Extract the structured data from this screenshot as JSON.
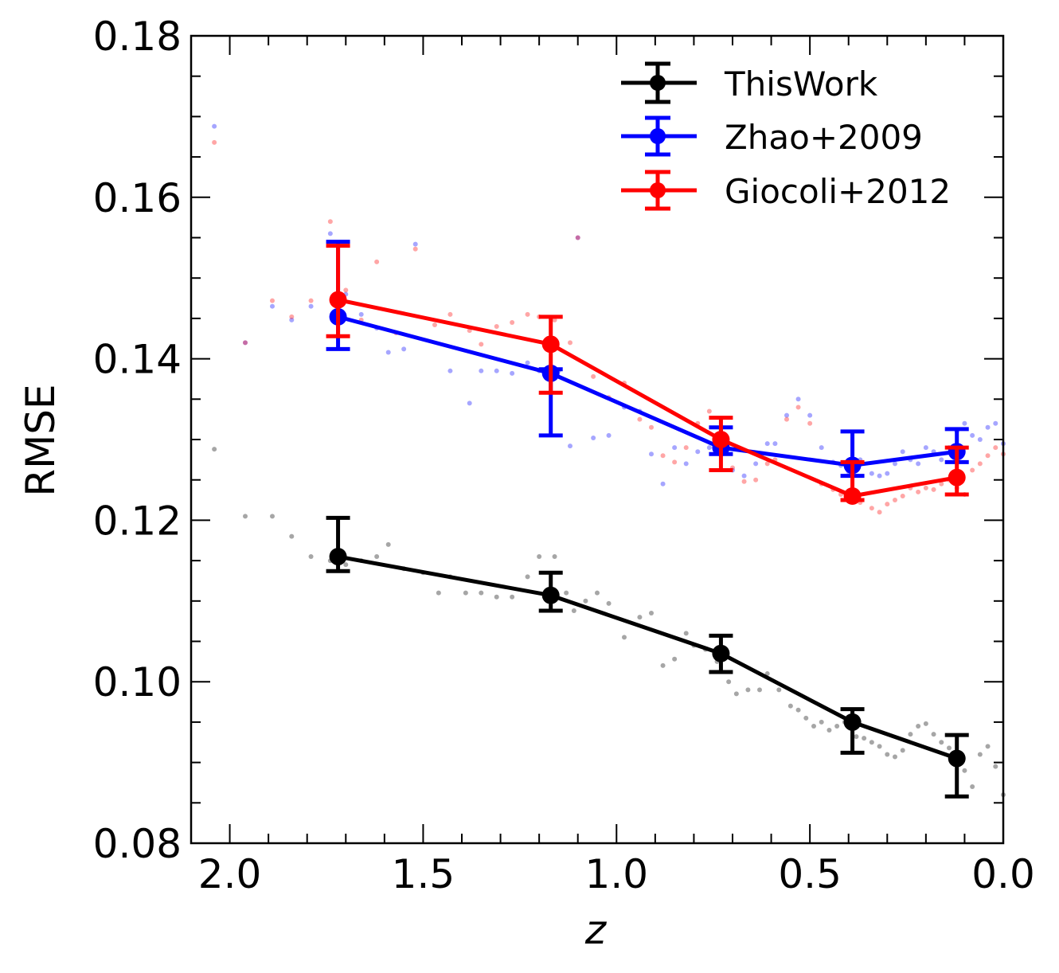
{
  "chart_data": {
    "type": "line",
    "title": "",
    "xlabel": "z",
    "ylabel": "RMSE",
    "xlim": [
      2.1,
      0.0
    ],
    "ylim": [
      0.08,
      0.18
    ],
    "x_inverted": true,
    "xticks": [
      2.0,
      1.5,
      1.0,
      0.5,
      0.0
    ],
    "xtick_labels": [
      "2.0",
      "1.5",
      "1.0",
      "0.5",
      "0.0"
    ],
    "yticks": [
      0.08,
      0.1,
      0.12,
      0.14,
      0.16,
      0.18
    ],
    "ytick_labels": [
      "0.08",
      "0.10",
      "0.12",
      "0.14",
      "0.16",
      "0.18"
    ],
    "legend_position": "top-right",
    "series": [
      {
        "name": "ThisWork",
        "color": "#000000",
        "x": [
          1.72,
          1.17,
          0.73,
          0.39,
          0.12
        ],
        "y": [
          0.1155,
          0.1107,
          0.1035,
          0.095,
          0.0905
        ],
        "yerr_low": [
          0.1137,
          0.1088,
          0.1012,
          0.0912,
          0.0858
        ],
        "yerr_high": [
          0.1203,
          0.1135,
          0.1057,
          0.0966,
          0.0934
        ],
        "scatter": [
          [
            2.04,
            0.1288
          ],
          [
            1.96,
            0.1205
          ],
          [
            1.89,
            0.1205
          ],
          [
            1.84,
            0.118
          ],
          [
            1.79,
            0.1155
          ],
          [
            1.74,
            0.115
          ],
          [
            1.7,
            0.1145
          ],
          [
            1.66,
            0.115
          ],
          [
            1.62,
            0.1155
          ],
          [
            1.59,
            0.117
          ],
          [
            1.55,
            0.114
          ],
          [
            1.5,
            0.1135
          ],
          [
            1.46,
            0.111
          ],
          [
            1.43,
            0.113
          ],
          [
            1.39,
            0.111
          ],
          [
            1.35,
            0.111
          ],
          [
            1.31,
            0.1105
          ],
          [
            1.27,
            0.1105
          ],
          [
            1.23,
            0.113
          ],
          [
            1.2,
            0.1155
          ],
          [
            1.16,
            0.1155
          ],
          [
            1.13,
            0.111
          ],
          [
            1.11,
            0.1088
          ],
          [
            1.08,
            0.11
          ],
          [
            1.05,
            0.111
          ],
          [
            1.02,
            0.1097
          ],
          [
            0.98,
            0.1055
          ],
          [
            0.94,
            0.108
          ],
          [
            0.91,
            0.1085
          ],
          [
            0.88,
            0.102
          ],
          [
            0.85,
            0.1028
          ],
          [
            0.82,
            0.106
          ],
          [
            0.8,
            0.1045
          ],
          [
            0.77,
            0.104
          ],
          [
            0.74,
            0.1025
          ],
          [
            0.71,
            0.1
          ],
          [
            0.69,
            0.0985
          ],
          [
            0.66,
            0.099
          ],
          [
            0.63,
            0.099
          ],
          [
            0.61,
            0.101
          ],
          [
            0.58,
            0.099
          ],
          [
            0.55,
            0.097
          ],
          [
            0.53,
            0.0965
          ],
          [
            0.51,
            0.0955
          ],
          [
            0.49,
            0.0945
          ],
          [
            0.47,
            0.095
          ],
          [
            0.45,
            0.094
          ],
          [
            0.43,
            0.0945
          ],
          [
            0.41,
            0.095
          ],
          [
            0.38,
            0.0932
          ],
          [
            0.36,
            0.093
          ],
          [
            0.34,
            0.0925
          ],
          [
            0.32,
            0.092
          ],
          [
            0.3,
            0.091
          ],
          [
            0.28,
            0.0907
          ],
          [
            0.26,
            0.0915
          ],
          [
            0.24,
            0.0935
          ],
          [
            0.22,
            0.0945
          ],
          [
            0.2,
            0.0948
          ],
          [
            0.18,
            0.0935
          ],
          [
            0.16,
            0.0925
          ],
          [
            0.14,
            0.0918
          ],
          [
            0.12,
            0.0908
          ],
          [
            0.1,
            0.089
          ],
          [
            0.08,
            0.087
          ],
          [
            0.06,
            0.091
          ],
          [
            0.04,
            0.092
          ],
          [
            0.02,
            0.0895
          ],
          [
            0.0,
            0.086
          ]
        ]
      },
      {
        "name": "Zhao+2009",
        "color": "#0000ff",
        "x": [
          1.72,
          1.17,
          0.73,
          0.39,
          0.12
        ],
        "y": [
          0.1452,
          0.1382,
          0.129,
          0.1268,
          0.1285
        ],
        "yerr_low": [
          0.1412,
          0.1305,
          0.1282,
          0.1255,
          0.1272
        ],
        "yerr_high": [
          0.1545,
          0.1387,
          0.1315,
          0.131,
          0.1313
        ],
        "scatter": [
          [
            2.04,
            0.1688
          ],
          [
            1.96,
            0.142
          ],
          [
            1.89,
            0.1465
          ],
          [
            1.84,
            0.1448
          ],
          [
            1.79,
            0.1465
          ],
          [
            1.74,
            0.1555
          ],
          [
            1.7,
            0.148
          ],
          [
            1.66,
            0.1455
          ],
          [
            1.62,
            0.1438
          ],
          [
            1.59,
            0.1408
          ],
          [
            1.55,
            0.1412
          ],
          [
            1.52,
            0.1542
          ],
          [
            1.43,
            0.1385
          ],
          [
            1.38,
            0.1345
          ],
          [
            1.35,
            0.1385
          ],
          [
            1.31,
            0.1385
          ],
          [
            1.27,
            0.1382
          ],
          [
            1.23,
            0.1395
          ],
          [
            1.2,
            0.1385
          ],
          [
            1.15,
            0.1385
          ],
          [
            1.12,
            0.1292
          ],
          [
            1.1,
            0.155
          ],
          [
            1.06,
            0.1302
          ],
          [
            1.02,
            0.1305
          ],
          [
            0.98,
            0.134
          ],
          [
            0.94,
            0.1335
          ],
          [
            0.91,
            0.1282
          ],
          [
            0.88,
            0.1245
          ],
          [
            0.85,
            0.129
          ],
          [
            0.82,
            0.127
          ],
          [
            0.79,
            0.1285
          ],
          [
            0.76,
            0.129
          ],
          [
            0.73,
            0.129
          ],
          [
            0.7,
            0.1262
          ],
          [
            0.67,
            0.1255
          ],
          [
            0.64,
            0.127
          ],
          [
            0.61,
            0.1295
          ],
          [
            0.59,
            0.1295
          ],
          [
            0.56,
            0.133
          ],
          [
            0.53,
            0.135
          ],
          [
            0.5,
            0.133
          ],
          [
            0.47,
            0.129
          ],
          [
            0.44,
            0.1272
          ],
          [
            0.42,
            0.1268
          ],
          [
            0.4,
            0.126
          ],
          [
            0.37,
            0.1275
          ],
          [
            0.34,
            0.1258
          ],
          [
            0.32,
            0.1255
          ],
          [
            0.3,
            0.1258
          ],
          [
            0.28,
            0.127
          ],
          [
            0.26,
            0.1285
          ],
          [
            0.24,
            0.1275
          ],
          [
            0.22,
            0.127
          ],
          [
            0.2,
            0.129
          ],
          [
            0.18,
            0.1285
          ],
          [
            0.16,
            0.1275
          ],
          [
            0.14,
            0.129
          ],
          [
            0.12,
            0.131
          ],
          [
            0.1,
            0.132
          ],
          [
            0.08,
            0.1305
          ],
          [
            0.06,
            0.13
          ],
          [
            0.04,
            0.1315
          ],
          [
            0.02,
            0.132
          ],
          [
            0.0,
            0.1295
          ]
        ]
      },
      {
        "name": "Giocoli+2012",
        "color": "#ff0000",
        "x": [
          1.72,
          1.17,
          0.73,
          0.39,
          0.12
        ],
        "y": [
          0.1473,
          0.1418,
          0.13,
          0.123,
          0.1253
        ],
        "yerr_low": [
          0.1428,
          0.1358,
          0.1262,
          0.1225,
          0.1232
        ],
        "yerr_high": [
          0.154,
          0.1452,
          0.1327,
          0.1272,
          0.129
        ],
        "scatter": [
          [
            2.04,
            0.1668
          ],
          [
            1.96,
            0.142
          ],
          [
            1.89,
            0.1472
          ],
          [
            1.84,
            0.1452
          ],
          [
            1.79,
            0.1472
          ],
          [
            1.74,
            0.157
          ],
          [
            1.7,
            0.1485
          ],
          [
            1.66,
            0.1448
          ],
          [
            1.62,
            0.152
          ],
          [
            1.57,
            0.1432
          ],
          [
            1.52,
            0.1536
          ],
          [
            1.47,
            0.1442
          ],
          [
            1.43,
            0.1455
          ],
          [
            1.38,
            0.1435
          ],
          [
            1.35,
            0.1418
          ],
          [
            1.31,
            0.144
          ],
          [
            1.27,
            0.1445
          ],
          [
            1.23,
            0.1455
          ],
          [
            1.2,
            0.1452
          ],
          [
            1.16,
            0.1448
          ],
          [
            1.12,
            0.142
          ],
          [
            1.1,
            0.155
          ],
          [
            1.06,
            0.1378
          ],
          [
            1.02,
            0.1352
          ],
          [
            0.98,
            0.137
          ],
          [
            0.94,
            0.1325
          ],
          [
            0.91,
            0.1315
          ],
          [
            0.88,
            0.128
          ],
          [
            0.85,
            0.1272
          ],
          [
            0.82,
            0.129
          ],
          [
            0.79,
            0.132
          ],
          [
            0.76,
            0.1335
          ],
          [
            0.73,
            0.13
          ],
          [
            0.7,
            0.1265
          ],
          [
            0.67,
            0.1248
          ],
          [
            0.64,
            0.125
          ],
          [
            0.61,
            0.127
          ],
          [
            0.59,
            0.1275
          ],
          [
            0.56,
            0.1325
          ],
          [
            0.53,
            0.134
          ],
          [
            0.5,
            0.132
          ],
          [
            0.47,
            0.1245
          ],
          [
            0.44,
            0.1238
          ],
          [
            0.42,
            0.1232
          ],
          [
            0.4,
            0.123
          ],
          [
            0.37,
            0.1222
          ],
          [
            0.34,
            0.1215
          ],
          [
            0.32,
            0.121
          ],
          [
            0.3,
            0.122
          ],
          [
            0.28,
            0.1225
          ],
          [
            0.26,
            0.123
          ],
          [
            0.24,
            0.124
          ],
          [
            0.22,
            0.1235
          ],
          [
            0.2,
            0.124
          ],
          [
            0.18,
            0.1238
          ],
          [
            0.16,
            0.1245
          ],
          [
            0.14,
            0.125
          ],
          [
            0.12,
            0.124
          ],
          [
            0.1,
            0.1232
          ],
          [
            0.08,
            0.1262
          ],
          [
            0.06,
            0.127
          ],
          [
            0.04,
            0.128
          ],
          [
            0.02,
            0.129
          ],
          [
            0.0,
            0.1282
          ]
        ]
      }
    ]
  }
}
